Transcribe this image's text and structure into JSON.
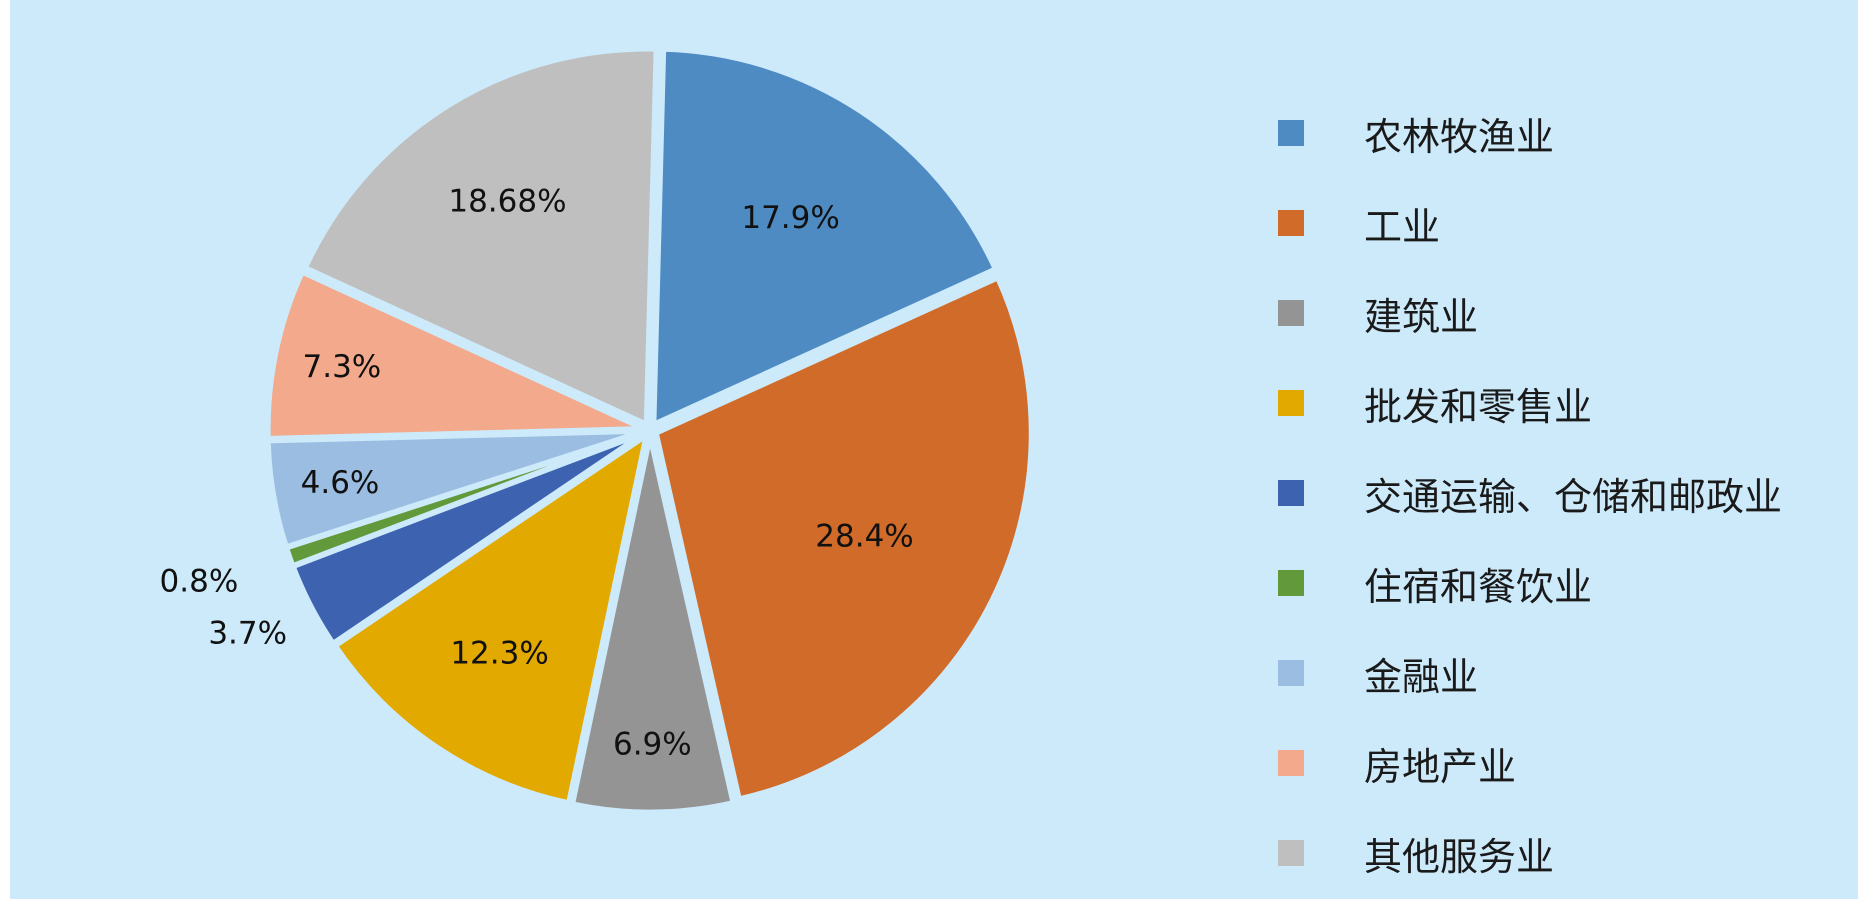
{
  "chart_data": {
    "type": "pie",
    "title": "",
    "legend_position": "right",
    "slices": [
      {
        "name": "农林牧渔业",
        "value": 17.9,
        "label": "17.9%",
        "color": "#4f8bc3"
      },
      {
        "name": "工业",
        "value": 28.4,
        "label": "28.4%",
        "color": "#d16b29"
      },
      {
        "name": "建筑业",
        "value": 6.9,
        "label": "6.9%",
        "color": "#949494"
      },
      {
        "name": "批发和零售业",
        "value": 12.3,
        "label": "12.3%",
        "color": "#e2a900"
      },
      {
        "name": "交通运输、仓储和邮政业",
        "value": 3.7,
        "label": "3.7%",
        "color": "#3c62b0"
      },
      {
        "name": "住宿和餐饮业",
        "value": 0.8,
        "label": "0.8%",
        "color": "#62993b"
      },
      {
        "name": "金融业",
        "value": 4.6,
        "label": "4.6%",
        "color": "#9cbde2"
      },
      {
        "name": "房地产业",
        "value": 7.3,
        "label": "7.3%",
        "color": "#f3a98c"
      },
      {
        "name": "其他服务业",
        "value": 18.68,
        "label": "18.68%",
        "color": "#bfbfbf"
      }
    ],
    "background_color": "#cdeafb"
  }
}
